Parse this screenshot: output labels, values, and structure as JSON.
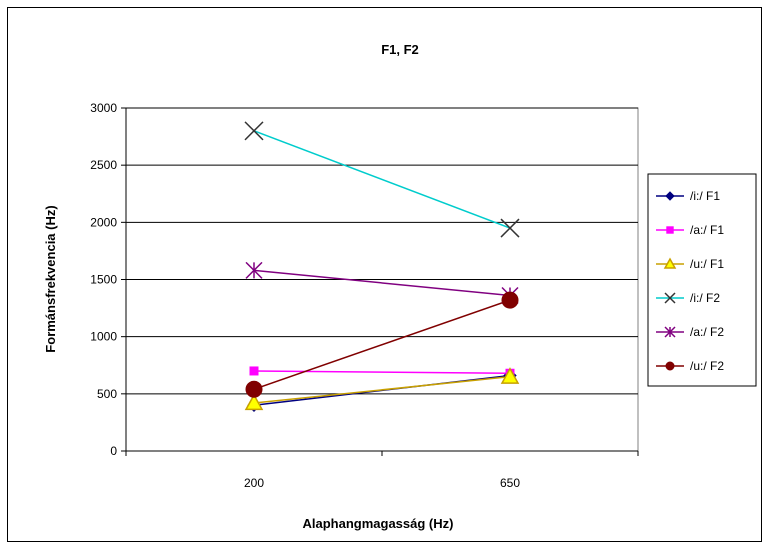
{
  "chart_data": {
    "type": "line",
    "title": "F1, F2",
    "xlabel": "Alaphangmagasság (Hz)",
    "ylabel": "Formánsfrekvencia (Hz)",
    "categories": [
      "200",
      "650"
    ],
    "ylim": [
      0,
      3000
    ],
    "yticks": [
      0,
      500,
      1000,
      1500,
      2000,
      2500,
      3000
    ],
    "grid": true,
    "legend_position": "right",
    "series": [
      {
        "name": "/i:/ F1",
        "values": [
          400,
          660
        ],
        "color": "#000080",
        "marker": "diamond"
      },
      {
        "name": "/a:/ F1",
        "values": [
          700,
          680
        ],
        "color": "#ff00ff",
        "marker": "square"
      },
      {
        "name": "/u:/ F1",
        "values": [
          420,
          650
        ],
        "color": "#c8a000",
        "marker": "triangle"
      },
      {
        "name": "/i:/ F2",
        "values": [
          2800,
          1950
        ],
        "color": "#00cccc",
        "marker": "x"
      },
      {
        "name": "/a:/ F2",
        "values": [
          1580,
          1360
        ],
        "color": "#800080",
        "marker": "star"
      },
      {
        "name": "/u:/ F2",
        "values": [
          540,
          1320
        ],
        "color": "#800000",
        "marker": "circle"
      }
    ]
  }
}
